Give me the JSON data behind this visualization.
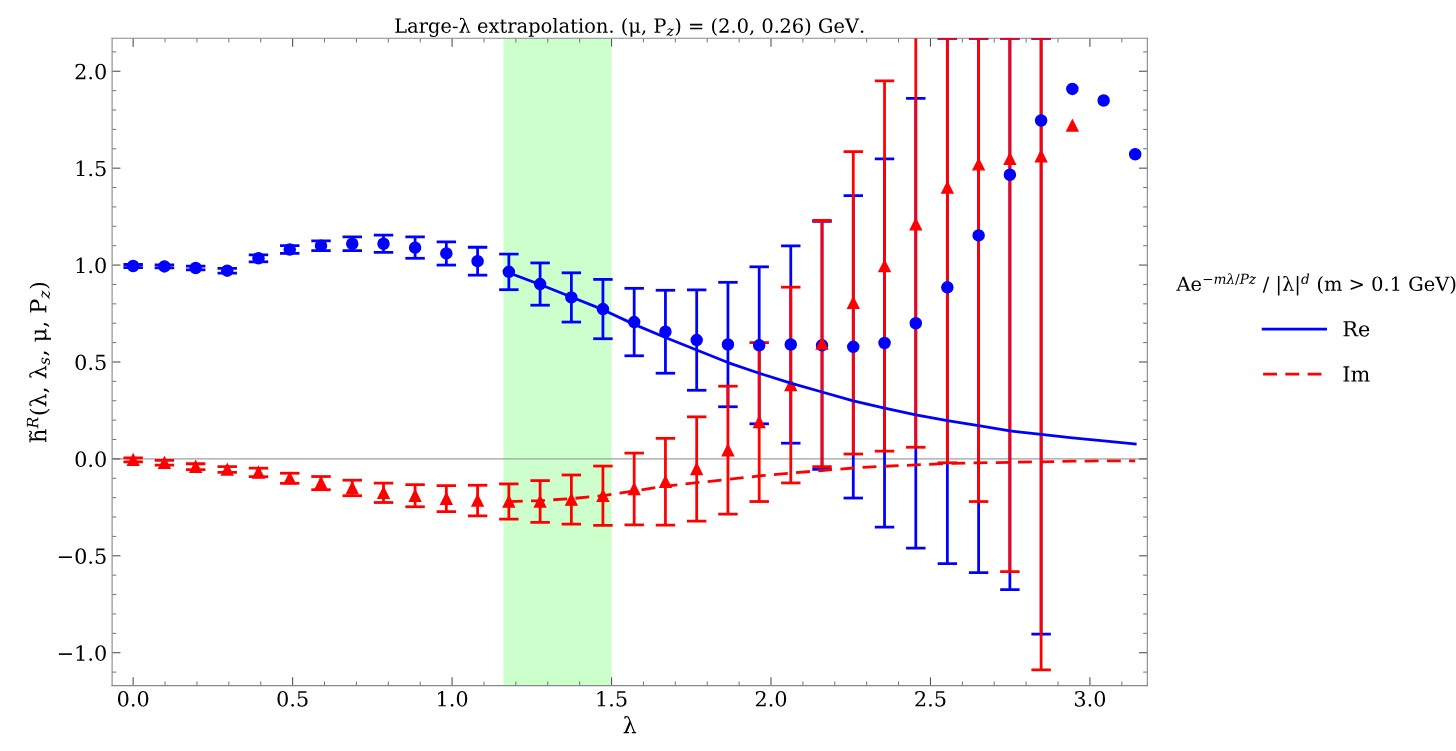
{
  "chart_data": {
    "type": "scatter",
    "title": "Large-λ extrapolation. (μ, P$_{z}$) = (2.0, 0.26) GeV.",
    "xlabel": "λ",
    "ylabel": "h̃$^{R}$(λ, λ$_{s}$, μ, P$_{z}$)",
    "legend_title": "Ae$^{−mλ/Pz}$ / |λ|$^{d}$ (m > 0.1 GeV)",
    "x": [
      0,
      0.098,
      0.196,
      0.295,
      0.393,
      0.491,
      0.589,
      0.687,
      0.785,
      0.884,
      0.982,
      1.08,
      1.178,
      1.276,
      1.374,
      1.473,
      1.571,
      1.669,
      1.767,
      1.865,
      1.963,
      2.062,
      2.16,
      2.258,
      2.356,
      2.454,
      2.553,
      2.651,
      2.749,
      2.847,
      2.945,
      3.043,
      3.142
    ],
    "series": [
      {
        "marker": "circle",
        "color": "#0000ff",
        "values": [
          0.995,
          0.993,
          0.985,
          0.971,
          1.035,
          1.08,
          1.1,
          1.11,
          1.11,
          1.09,
          1.06,
          1.02,
          0.965,
          0.902,
          0.833,
          0.773,
          0.706,
          0.656,
          0.613,
          0.59,
          0.586,
          0.59,
          0.586,
          0.578,
          0.598,
          0.7,
          0.885,
          1.153,
          1.466,
          1.746,
          1.909,
          1.849,
          1.572
        ],
        "errors": [
          0.008,
          0.008,
          0.01,
          0.012,
          0.018,
          0.02,
          0.025,
          0.035,
          0.045,
          0.055,
          0.06,
          0.072,
          0.092,
          0.109,
          0.127,
          0.153,
          0.174,
          0.214,
          0.259,
          0.321,
          0.405,
          0.509,
          0.64,
          0.78,
          0.95,
          1.16,
          [
            -0.54,
            2.17
          ],
          [
            -0.587,
            2.17
          ],
          [
            -0.674,
            2.17
          ],
          [
            -0.904,
            2.17
          ],
          null,
          null,
          null
        ]
      },
      {
        "marker": "triangle",
        "color": "#ff0000",
        "values": [
          -0.005,
          -0.02,
          -0.04,
          -0.055,
          -0.07,
          -0.1,
          -0.125,
          -0.15,
          -0.175,
          -0.19,
          -0.205,
          -0.215,
          -0.22,
          -0.22,
          -0.21,
          -0.19,
          -0.155,
          -0.118,
          -0.052,
          0.045,
          0.19,
          0.381,
          0.595,
          0.805,
          0.995,
          1.21,
          1.4,
          1.52,
          1.548,
          1.562,
          1.72,
          null,
          null
        ],
        "errors": [
          0.01,
          0.012,
          0.015,
          0.015,
          0.022,
          0.026,
          0.034,
          0.04,
          0.05,
          0.057,
          0.067,
          0.079,
          0.091,
          0.108,
          0.127,
          0.153,
          0.185,
          0.224,
          0.269,
          0.33,
          0.41,
          0.505,
          0.635,
          0.78,
          0.955,
          1.15,
          [
            -0.02,
            2.17
          ],
          [
            -0.22,
            2.17
          ],
          [
            -0.582,
            2.17
          ],
          [
            -1.088,
            2.17
          ],
          null,
          null,
          null
        ]
      },
      {
        "type": "line",
        "name": "Re",
        "line_style": "solid",
        "color": "#0000ff",
        "x": [
          1.178,
          1.276,
          1.374,
          1.473,
          1.571,
          1.669,
          1.767,
          1.865,
          1.963,
          2.062,
          2.16,
          2.258,
          2.356,
          2.454,
          2.553,
          2.651,
          2.749,
          2.847,
          2.945,
          3.043,
          3.142
        ],
        "values": [
          0.96,
          0.9,
          0.835,
          0.77,
          0.694,
          0.626,
          0.562,
          0.497,
          0.442,
          0.391,
          0.345,
          0.299,
          0.262,
          0.227,
          0.197,
          0.172,
          0.144,
          0.126,
          0.109,
          0.093,
          0.077
        ]
      },
      {
        "type": "line",
        "name": "Im",
        "line_style": "dashed",
        "color": "#ff0000",
        "x": [
          1.178,
          1.276,
          1.374,
          1.473,
          1.571,
          1.669,
          1.767,
          1.865,
          1.963,
          2.062,
          2.16,
          2.258,
          2.356,
          2.454,
          2.553,
          2.651,
          2.749,
          2.847,
          2.945,
          3.043,
          3.142
        ],
        "values": [
          -0.22,
          -0.215,
          -0.205,
          -0.19,
          -0.165,
          -0.141,
          -0.123,
          -0.106,
          -0.088,
          -0.073,
          -0.06,
          -0.047,
          -0.038,
          -0.031,
          -0.024,
          -0.02,
          -0.018,
          -0.015,
          -0.012,
          -0.01,
          -0.01
        ]
      }
    ],
    "xlim": [
      -0.066,
      3.18
    ],
    "ylim": [
      -1.17,
      2.17
    ],
    "xticks": [
      {
        "value": 0,
        "label": "0.0"
      },
      {
        "value": 0.5,
        "label": "0.5"
      },
      {
        "value": 1,
        "label": "1.0"
      },
      {
        "value": 1.5,
        "label": "1.5"
      },
      {
        "value": 2,
        "label": "2.0"
      },
      {
        "value": 2.5,
        "label": "2.5"
      },
      {
        "value": 3,
        "label": "3.0"
      }
    ],
    "yticks": [
      {
        "value": -1,
        "label": "−1.0"
      },
      {
        "value": -0.5,
        "label": "−0.5"
      },
      {
        "value": 0,
        "label": "0.0"
      },
      {
        "value": 0.5,
        "label": "0.5"
      },
      {
        "value": 1,
        "label": "1.0"
      },
      {
        "value": 1.5,
        "label": "1.5"
      },
      {
        "value": 2,
        "label": "2.0"
      }
    ],
    "ref_lines": [
      {
        "axis": "y",
        "value": 0,
        "color": "#a0a0a0"
      }
    ],
    "bands": [
      {
        "axis": "x",
        "from": 1.161,
        "to": 1.5,
        "color": "#ccffcc"
      }
    ],
    "grid": false,
    "legend": "right"
  }
}
